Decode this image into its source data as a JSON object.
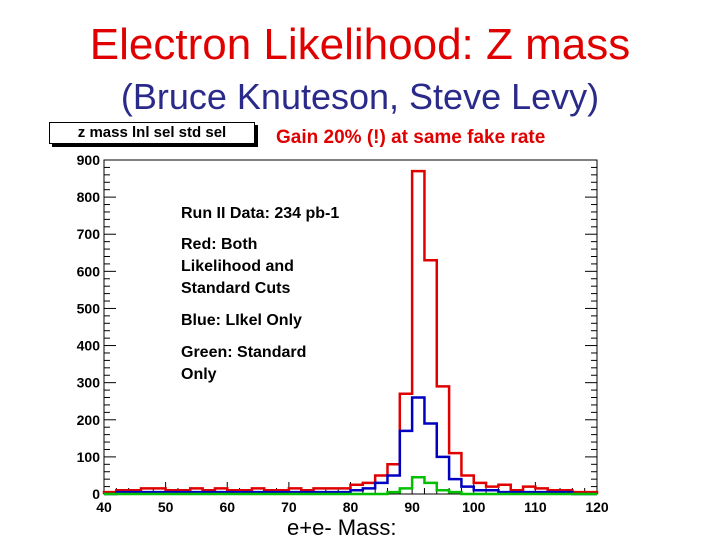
{
  "title": "Electron Likelihood: Z mass",
  "subtitle": "(Bruce Knuteson, Steve Levy)",
  "hist_label": "z mass lnl sel std sel",
  "note": "Gain 20% (!) at same fake rate",
  "legend": {
    "run": "Run II Data: 234 pb-1",
    "red": "Red: Both\nLikelihood and\nStandard Cuts",
    "blue": "Blue: LIkel Only",
    "green": "Green: Standard\nOnly"
  },
  "chart_data": {
    "type": "line",
    "title": "z mass lnl sel std sel",
    "xlabel": "e+e-  Mass:",
    "ylabel": "",
    "xlim": [
      40,
      120
    ],
    "ylim": [
      0,
      900
    ],
    "x_ticks": [
      40,
      50,
      60,
      70,
      80,
      90,
      100,
      110,
      120
    ],
    "y_ticks": [
      0,
      100,
      200,
      300,
      400,
      500,
      600,
      700,
      800,
      900
    ],
    "bin_edges": [
      40,
      42,
      44,
      46,
      48,
      50,
      52,
      54,
      56,
      58,
      60,
      62,
      64,
      66,
      68,
      70,
      72,
      74,
      76,
      78,
      80,
      82,
      84,
      86,
      88,
      90,
      92,
      94,
      96,
      98,
      100,
      102,
      104,
      106,
      108,
      110,
      112,
      114,
      116,
      118,
      120
    ],
    "series": [
      {
        "color": "#e00000",
        "values": [
          5,
          10,
          10,
          15,
          15,
          10,
          10,
          15,
          10,
          15,
          10,
          10,
          15,
          10,
          10,
          15,
          10,
          15,
          15,
          15,
          25,
          30,
          50,
          80,
          270,
          870,
          630,
          290,
          110,
          50,
          30,
          20,
          25,
          10,
          20,
          15,
          10,
          10,
          5,
          5
        ]
      },
      {
        "color": "#0000c0",
        "values": [
          0,
          5,
          5,
          5,
          5,
          5,
          5,
          5,
          5,
          5,
          5,
          5,
          5,
          5,
          5,
          5,
          5,
          5,
          5,
          5,
          10,
          15,
          30,
          50,
          170,
          260,
          190,
          100,
          40,
          20,
          10,
          10,
          5,
          5,
          5,
          5,
          5,
          5,
          0,
          0
        ]
      },
      {
        "color": "#00c000",
        "values": [
          0,
          0,
          0,
          0,
          0,
          0,
          0,
          0,
          0,
          0,
          0,
          0,
          0,
          0,
          0,
          0,
          0,
          0,
          0,
          0,
          0,
          0,
          0,
          5,
          15,
          45,
          30,
          10,
          5,
          0,
          0,
          0,
          0,
          0,
          0,
          0,
          0,
          0,
          0,
          0
        ]
      }
    ]
  }
}
